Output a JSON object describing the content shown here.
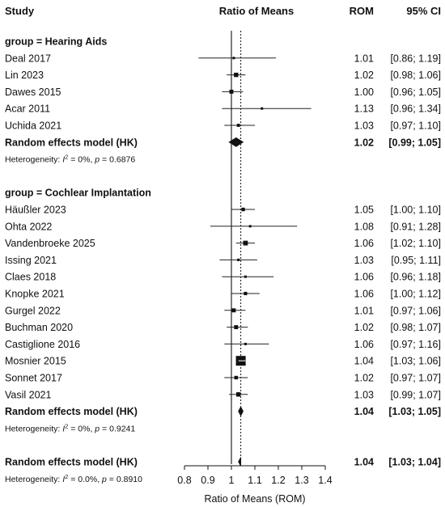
{
  "chart_data": {
    "type": "forest",
    "headers": {
      "study": "Study",
      "plot": "Ratio of Means",
      "rom": "ROM",
      "ci": "95% CI"
    },
    "xlabel": "Ratio of Means (ROM)",
    "xlim": [
      0.8,
      1.4
    ],
    "x_ticks": [
      0.8,
      0.9,
      1,
      1.1,
      1.2,
      1.3,
      1.4
    ],
    "x_tick_labels": [
      "0.8",
      "0.9",
      "1",
      "1.1",
      "1.2",
      "1.3",
      "1.4"
    ],
    "reference_line": 1,
    "overall_line": 1.04,
    "groups": [
      {
        "label": "group = Hearing Aids",
        "studies": [
          {
            "name": "Deal 2017",
            "est": 1.01,
            "lo": 0.86,
            "hi": 1.19,
            "rom": "1.01",
            "ci": "[0.86; 1.19]",
            "weight": 1
          },
          {
            "name": "Lin 2023",
            "est": 1.02,
            "lo": 0.98,
            "hi": 1.06,
            "rom": "1.02",
            "ci": "[0.98; 1.06]",
            "weight": 6
          },
          {
            "name": "Dawes 2015",
            "est": 1.0,
            "lo": 0.96,
            "hi": 1.05,
            "rom": "1.00",
            "ci": "[0.96; 1.05]",
            "weight": 5
          },
          {
            "name": "Acar 2011",
            "est": 1.13,
            "lo": 0.96,
            "hi": 1.34,
            "rom": "1.13",
            "ci": "[0.96; 1.34]",
            "weight": 1
          },
          {
            "name": "Uchida 2021",
            "est": 1.03,
            "lo": 0.97,
            "hi": 1.1,
            "rom": "1.03",
            "ci": "[0.97; 1.10]",
            "weight": 3
          }
        ],
        "model": {
          "label": "Random effects model (HK)",
          "est": 1.02,
          "lo": 0.99,
          "hi": 1.05,
          "rom": "1.02",
          "ci": "[0.99; 1.05]"
        },
        "heterogeneity": "Heterogeneity: I² = 0%, p = 0.6876"
      },
      {
        "label": "group = Cochlear Implantation",
        "studies": [
          {
            "name": "Häußler 2023",
            "est": 1.05,
            "lo": 1.0,
            "hi": 1.1,
            "rom": "1.05",
            "ci": "[1.00; 1.10]",
            "weight": 4
          },
          {
            "name": "Ohta 2022",
            "est": 1.08,
            "lo": 0.91,
            "hi": 1.28,
            "rom": "1.08",
            "ci": "[0.91; 1.28]",
            "weight": 1
          },
          {
            "name": "Vandenbroeke 2025",
            "est": 1.06,
            "lo": 1.02,
            "hi": 1.1,
            "rom": "1.06",
            "ci": "[1.02; 1.10]",
            "weight": 7
          },
          {
            "name": "Issing 2021",
            "est": 1.03,
            "lo": 0.95,
            "hi": 1.11,
            "rom": "1.03",
            "ci": "[0.95; 1.11]",
            "weight": 2
          },
          {
            "name": "Claes 2018",
            "est": 1.06,
            "lo": 0.96,
            "hi": 1.18,
            "rom": "1.06",
            "ci": "[0.96; 1.18]",
            "weight": 1.5
          },
          {
            "name": "Knopke 2021",
            "est": 1.06,
            "lo": 1.0,
            "hi": 1.12,
            "rom": "1.06",
            "ci": "[1.00; 1.12]",
            "weight": 3.5
          },
          {
            "name": "Gurgel 2022",
            "est": 1.01,
            "lo": 0.97,
            "hi": 1.06,
            "rom": "1.01",
            "ci": "[0.97; 1.06]",
            "weight": 5
          },
          {
            "name": "Buchman 2020",
            "est": 1.02,
            "lo": 0.98,
            "hi": 1.07,
            "rom": "1.02",
            "ci": "[0.98; 1.07]",
            "weight": 5
          },
          {
            "name": "Castiglione 2016",
            "est": 1.06,
            "lo": 0.97,
            "hi": 1.16,
            "rom": "1.06",
            "ci": "[0.97; 1.16]",
            "weight": 1.5
          },
          {
            "name": "Mosnier 2015",
            "est": 1.04,
            "lo": 1.03,
            "hi": 1.06,
            "rom": "1.04",
            "ci": "[1.03; 1.06]",
            "weight": 30
          },
          {
            "name": "Sonnet 2017",
            "est": 1.02,
            "lo": 0.97,
            "hi": 1.07,
            "rom": "1.02",
            "ci": "[0.97; 1.07]",
            "weight": 4
          },
          {
            "name": "Vasil 2021",
            "est": 1.03,
            "lo": 0.99,
            "hi": 1.07,
            "rom": "1.03",
            "ci": "[0.99; 1.07]",
            "weight": 6
          }
        ],
        "model": {
          "label": "Random effects model (HK)",
          "est": 1.04,
          "lo": 1.03,
          "hi": 1.05,
          "rom": "1.04",
          "ci": "[1.03; 1.05]"
        },
        "heterogeneity": "Heterogeneity: I² = 0%, p = 0.9241"
      }
    ],
    "overall": {
      "label": "Random effects model (HK)",
      "est": 1.04,
      "lo": 1.03,
      "hi": 1.04,
      "rom": "1.04",
      "ci": "[1.03; 1.04]",
      "heterogeneity": "Heterogeneity: I² = 0.0%, p = 0.8910"
    }
  }
}
